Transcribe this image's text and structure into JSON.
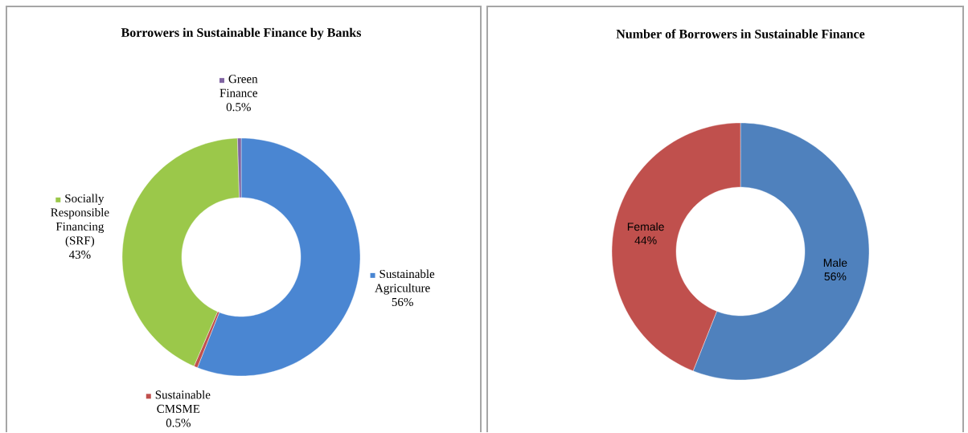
{
  "chart_data": [
    {
      "type": "donut",
      "title": "Borrowers in Sustainable Finance  by Banks",
      "categories": [
        "Sustainable Agriculture",
        "Sustainable CMSME",
        "Socially Responsible Financing (SRF)",
        "Green Finance"
      ],
      "values": [
        56,
        0.5,
        43,
        0.5
      ],
      "value_labels": [
        "56%",
        "0.5%",
        "43%",
        "0.5%"
      ],
      "colors": [
        "#4a86d2",
        "#c0504d",
        "#9bc84a",
        "#8064a2"
      ],
      "legend": "right"
    },
    {
      "type": "donut",
      "title": "Number of Borrowers in Sustainable Finance",
      "categories": [
        "Male",
        "Female"
      ],
      "values": [
        56,
        44
      ],
      "value_labels": [
        "56%",
        "44%"
      ],
      "colors": [
        "#4f81bd",
        "#c0504d"
      ]
    }
  ]
}
